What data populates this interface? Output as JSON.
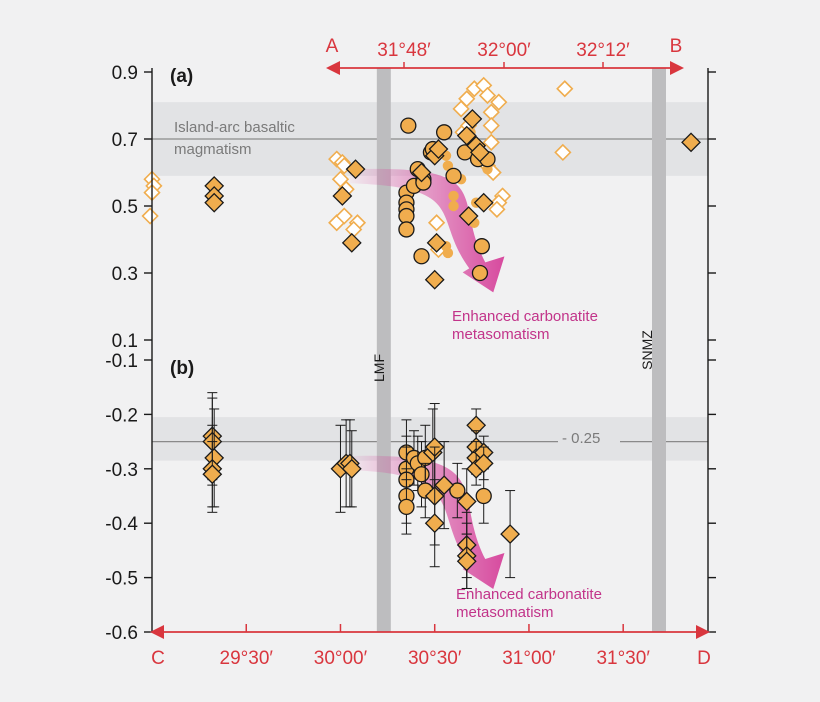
{
  "colors": {
    "background": "#f1f1f2",
    "axis_red": "#d9363e",
    "marker_fill": "#f0ad4e",
    "marker_open_edge": "#f0ad4e",
    "band_grey": "#e2e3e5",
    "zone_bar_grey": "#bdbdbf",
    "arrow_pink": "#d6419a"
  },
  "chart_data": {
    "type": "scatter",
    "top_axis": {
      "start_label": "A",
      "end_label": "B",
      "ticks": [
        "31°48′",
        "32°00′",
        "32°12′"
      ]
    },
    "bottom_axis": {
      "start_label": "C",
      "end_label": "D",
      "ticks": [
        "29°30′",
        "30°00′",
        "30°30′",
        "31°00′",
        "31°30′"
      ],
      "tick_values_min": [
        29.5,
        30.0,
        30.5,
        31.0,
        31.5
      ],
      "xlim_min": [
        29.0,
        31.95
      ]
    },
    "zones": [
      {
        "label": "LMF",
        "x_min": 30.23
      },
      {
        "label": "SNMZ",
        "x_min": 31.69
      }
    ],
    "panels": [
      {
        "label": "(a)",
        "ylim": [
          0.1,
          0.9
        ],
        "yticks": [
          "0.1",
          "0.3",
          "0.5",
          "0.7",
          "0.9"
        ],
        "ytick_values": [
          0.1,
          0.3,
          0.5,
          0.7,
          0.9
        ],
        "band": {
          "y": [
            0.59,
            0.81
          ],
          "line": 0.7,
          "label_line1": "Island-arc basaltic",
          "label_line2": "magmatism"
        },
        "arrow": {
          "from": [
            30.05,
            0.58
          ],
          "to": [
            30.8,
            0.26
          ],
          "label_line1": "Enhanced carbonatite",
          "label_line2": "metasomatism"
        },
        "series": [
          {
            "marker": "diamond-filled",
            "points": [
              [
                29.33,
                0.56
              ],
              [
                29.33,
                0.53
              ],
              [
                29.33,
                0.51
              ],
              [
                30.01,
                0.53
              ],
              [
                30.08,
                0.61
              ],
              [
                30.06,
                0.39
              ],
              [
                30.43,
                0.6
              ],
              [
                30.5,
                0.65
              ],
              [
                30.52,
                0.67
              ],
              [
                30.51,
                0.39
              ],
              [
                30.5,
                0.28
              ],
              [
                30.67,
                0.71
              ],
              [
                30.7,
                0.76
              ],
              [
                30.72,
                0.68
              ],
              [
                30.74,
                0.66
              ],
              [
                30.76,
                0.51
              ],
              [
                30.68,
                0.47
              ],
              [
                31.86,
                0.69
              ]
            ]
          },
          {
            "marker": "circle-filled",
            "points": [
              [
                30.36,
                0.74
              ],
              [
                30.35,
                0.54
              ],
              [
                30.35,
                0.51
              ],
              [
                30.35,
                0.49
              ],
              [
                30.35,
                0.47
              ],
              [
                30.35,
                0.43
              ],
              [
                30.39,
                0.56
              ],
              [
                30.41,
                0.61
              ],
              [
                30.44,
                0.58
              ],
              [
                30.44,
                0.57
              ],
              [
                30.43,
                0.35
              ],
              [
                30.48,
                0.66
              ],
              [
                30.49,
                0.67
              ],
              [
                30.55,
                0.72
              ],
              [
                30.6,
                0.59
              ],
              [
                30.66,
                0.66
              ],
              [
                30.73,
                0.64
              ],
              [
                30.78,
                0.64
              ],
              [
                30.75,
                0.38
              ],
              [
                30.74,
                0.3
              ]
            ]
          },
          {
            "marker": "circle-small",
            "points": [
              [
                30.56,
                0.65
              ],
              [
                30.57,
                0.62
              ],
              [
                30.6,
                0.53
              ],
              [
                30.6,
                0.5
              ],
              [
                30.56,
                0.38
              ],
              [
                30.57,
                0.36
              ],
              [
                30.64,
                0.58
              ],
              [
                30.69,
                0.68
              ],
              [
                30.69,
                0.72
              ],
              [
                30.78,
                0.61
              ],
              [
                30.72,
                0.51
              ],
              [
                30.71,
                0.45
              ]
            ]
          },
          {
            "marker": "diamond-open",
            "points": [
              [
                29.0,
                0.58
              ],
              [
                29.01,
                0.56
              ],
              [
                29.0,
                0.54
              ],
              [
                28.99,
                0.47
              ],
              [
                29.98,
                0.64
              ],
              [
                30.01,
                0.63
              ],
              [
                30.02,
                0.62
              ],
              [
                30.0,
                0.58
              ],
              [
                30.03,
                0.55
              ],
              [
                29.98,
                0.45
              ],
              [
                30.02,
                0.47
              ],
              [
                30.09,
                0.45
              ],
              [
                30.07,
                0.43
              ],
              [
                30.51,
                0.45
              ],
              [
                30.52,
                0.37
              ],
              [
                30.65,
                0.72
              ],
              [
                30.68,
                0.74
              ],
              [
                30.64,
                0.79
              ],
              [
                30.67,
                0.82
              ],
              [
                30.71,
                0.85
              ],
              [
                30.76,
                0.86
              ],
              [
                30.78,
                0.83
              ],
              [
                30.84,
                0.81
              ],
              [
                30.8,
                0.78
              ],
              [
                30.8,
                0.74
              ],
              [
                30.8,
                0.69
              ],
              [
                30.78,
                0.62
              ],
              [
                30.81,
                0.6
              ],
              [
                30.86,
                0.53
              ],
              [
                30.84,
                0.51
              ],
              [
                30.83,
                0.49
              ],
              [
                31.19,
                0.85
              ],
              [
                31.18,
                0.66
              ]
            ]
          }
        ]
      },
      {
        "label": "(b)",
        "ylim": [
          -0.6,
          -0.1
        ],
        "yticks": [
          "-0.1",
          "-0.2",
          "-0.3",
          "-0.4",
          "-0.5",
          "-0.6"
        ],
        "ytick_values": [
          -0.1,
          -0.2,
          -0.3,
          -0.4,
          -0.5,
          -0.6
        ],
        "band": {
          "y": [
            -0.285,
            -0.205
          ],
          "line": -0.25,
          "label": "- 0.25"
        },
        "arrow": {
          "from": [
            30.05,
            -0.295
          ],
          "to": [
            30.8,
            -0.51
          ],
          "label_line1": "Enhanced carbonatite",
          "label_line2": "metasomatism"
        },
        "series": [
          {
            "marker": "diamond-errorbar",
            "points": [
              [
                29.32,
                -0.24,
                0.08
              ],
              [
                29.32,
                -0.25,
                0.08
              ],
              [
                29.33,
                -0.28,
                0.09
              ],
              [
                29.32,
                -0.3,
                0.08
              ],
              [
                29.32,
                -0.31,
                0.06
              ],
              [
                30.0,
                -0.3,
                0.08
              ],
              [
                30.03,
                -0.29,
                0.08
              ],
              [
                30.05,
                -0.29,
                0.08
              ],
              [
                30.06,
                -0.3,
                0.07
              ],
              [
                30.49,
                -0.27,
                0.08
              ],
              [
                30.5,
                -0.26,
                0.08
              ],
              [
                30.5,
                -0.35,
                0.09
              ],
              [
                30.5,
                -0.4,
                0.08
              ],
              [
                30.55,
                -0.33,
                0.08
              ],
              [
                30.67,
                -0.36,
                0.06
              ],
              [
                30.67,
                -0.44,
                0.06
              ],
              [
                30.67,
                -0.46,
                0.06
              ],
              [
                30.67,
                -0.47,
                0.05
              ],
              [
                30.72,
                -0.22,
                0.03
              ],
              [
                30.72,
                -0.26,
                0.03
              ],
              [
                30.72,
                -0.28,
                0.03
              ],
              [
                30.72,
                -0.3,
                0.03
              ],
              [
                30.76,
                -0.27,
                0.03
              ],
              [
                30.76,
                -0.29,
                0.03
              ],
              [
                30.9,
                -0.42,
                0.08
              ]
            ]
          },
          {
            "marker": "circle-errorbar",
            "points": [
              [
                30.35,
                -0.27,
                0.06
              ],
              [
                30.35,
                -0.3,
                0.06
              ],
              [
                30.35,
                -0.32,
                0.06
              ],
              [
                30.35,
                -0.35,
                0.05
              ],
              [
                30.35,
                -0.37,
                0.05
              ],
              [
                30.39,
                -0.28,
                0.05
              ],
              [
                30.41,
                -0.29,
                0.05
              ],
              [
                30.43,
                -0.31,
                0.06
              ],
              [
                30.45,
                -0.28,
                0.06
              ],
              [
                30.45,
                -0.34,
                0.05
              ],
              [
                30.62,
                -0.34,
                0.05
              ],
              [
                30.76,
                -0.35,
                0.05
              ]
            ]
          }
        ]
      }
    ]
  }
}
